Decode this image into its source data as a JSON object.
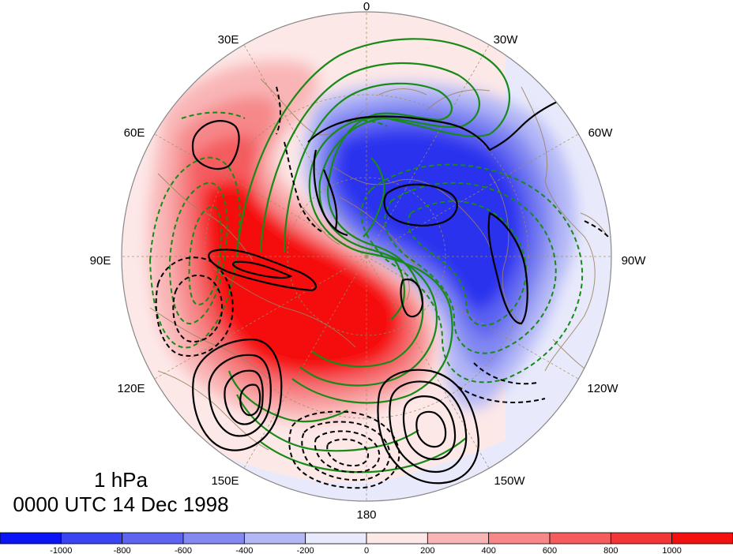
{
  "map": {
    "longitude_labels": [
      "0",
      "30W",
      "60W",
      "90W",
      "120W",
      "150W",
      "180",
      "150E",
      "120E",
      "90E",
      "60E",
      "30E"
    ],
    "level_label": "1 hPa",
    "time_label": "0000 UTC 14 Dec 1998"
  },
  "colorbar": {
    "labels": [
      "-1000",
      "-800",
      "-600",
      "-400",
      "-200",
      "0",
      "200",
      "400",
      "600",
      "800",
      "1000"
    ],
    "colors": [
      "#0a14f5",
      "#3b44f2",
      "#5d64f0",
      "#8389f1",
      "#b3b7f6",
      "#e8eafb",
      "#fde8e8",
      "#f9b5b6",
      "#f6888a",
      "#f45c5e",
      "#f23638",
      "#f51010"
    ]
  },
  "colors": {
    "border": "#9c8060",
    "graticule": "#a08a60",
    "green_contour": "#188a18",
    "black_contour": "#000000"
  }
}
